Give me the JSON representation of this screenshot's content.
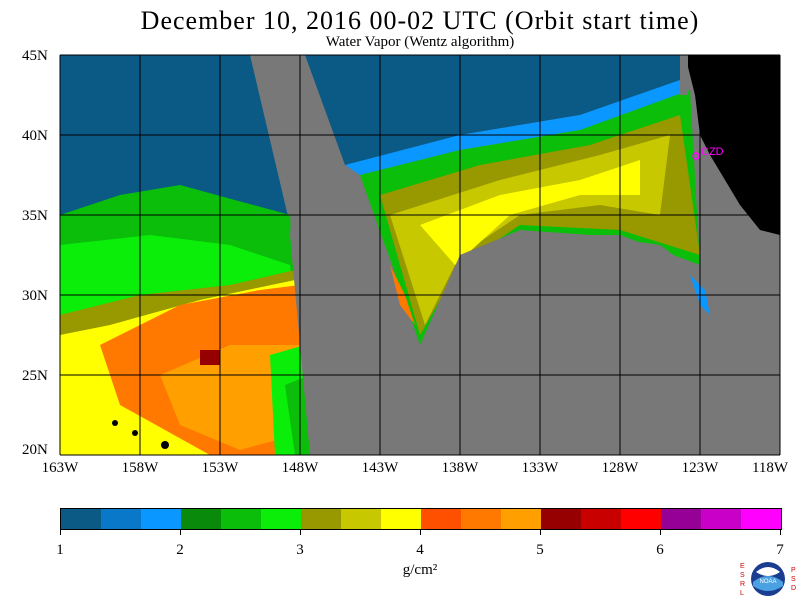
{
  "title": "December 10, 2016  00-02 UTC  (Orbit start time)",
  "subtitle": "Water Vapor (Wentz algorithm)",
  "latitude_labels": [
    "45N",
    "40N",
    "35N",
    "30N",
    "25N",
    "20N"
  ],
  "longitude_labels": [
    "163W",
    "158W",
    "153W",
    "148W",
    "143W",
    "138W",
    "133W",
    "128W",
    "123W",
    "118W"
  ],
  "station_label": "CZD",
  "colorbar": {
    "colors": [
      "#0b5a86",
      "#0a78c8",
      "#0a97ff",
      "#0a8a0a",
      "#0abe0a",
      "#0aee0a",
      "#989800",
      "#c8c800",
      "#ffff00",
      "#ff5000",
      "#ff7800",
      "#ff9f00",
      "#960000",
      "#c80000",
      "#ff0000",
      "#960096",
      "#c800c8",
      "#ff00ff"
    ],
    "tick_labels": [
      "1",
      "2",
      "3",
      "4",
      "5",
      "6",
      "7"
    ],
    "units": "g/cm²"
  },
  "logo": {
    "left_letters": "ESRL",
    "right_letters": "PSD",
    "seal_text": "NOAA"
  },
  "colors": {
    "no_data": "#787878",
    "land": "#000000",
    "ocean_dry": "#0b5a86"
  }
}
